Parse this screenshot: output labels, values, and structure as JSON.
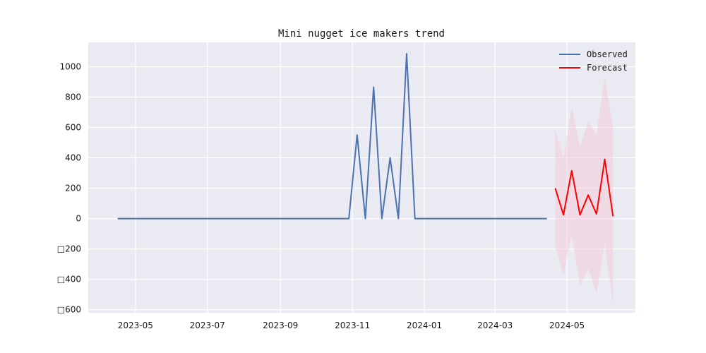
{
  "chart_data": {
    "type": "line",
    "title": "Mini nugget ice makers trend",
    "xlabel": "",
    "ylabel": "",
    "ylim": [
      -620,
      1160
    ],
    "xlim": [
      "2023-03-22",
      "2024-06-28"
    ],
    "grid": true,
    "legend_position": "top-right",
    "x_tick_labels": [
      "2023-05",
      "2023-07",
      "2023-09",
      "2023-11",
      "2024-01",
      "2024-03",
      "2024-05"
    ],
    "x_tick_dates": [
      "2023-05-01",
      "2023-07-01",
      "2023-09-01",
      "2023-11-01",
      "2024-01-01",
      "2024-03-01",
      "2024-05-01"
    ],
    "y_ticks": [
      -600,
      -400,
      -200,
      0,
      200,
      400,
      600,
      800,
      1000
    ],
    "y_tick_labels": [
      "□600",
      "□400",
      "□200",
      "0",
      "200",
      "400",
      "600",
      "800",
      "1000"
    ],
    "series": [
      {
        "name": "Observed",
        "color": "#4c72b0",
        "x": [
          "2023-04-16",
          "2023-04-23",
          "2023-04-30",
          "2023-05-07",
          "2023-05-14",
          "2023-05-21",
          "2023-05-28",
          "2023-06-04",
          "2023-06-11",
          "2023-06-18",
          "2023-06-25",
          "2023-07-02",
          "2023-07-09",
          "2023-07-16",
          "2023-07-23",
          "2023-07-30",
          "2023-08-06",
          "2023-08-13",
          "2023-08-20",
          "2023-08-27",
          "2023-09-03",
          "2023-09-10",
          "2023-09-17",
          "2023-09-24",
          "2023-10-01",
          "2023-10-08",
          "2023-10-15",
          "2023-10-22",
          "2023-10-29",
          "2023-11-05",
          "2023-11-12",
          "2023-11-19",
          "2023-11-26",
          "2023-12-03",
          "2023-12-10",
          "2023-12-17",
          "2023-12-24",
          "2023-12-31",
          "2024-01-07",
          "2024-01-14",
          "2024-01-21",
          "2024-01-28",
          "2024-02-04",
          "2024-02-11",
          "2024-02-18",
          "2024-02-25",
          "2024-03-03",
          "2024-03-10",
          "2024-03-17",
          "2024-03-24",
          "2024-03-31",
          "2024-04-07",
          "2024-04-14"
        ],
        "y": [
          0,
          0,
          0,
          0,
          0,
          0,
          0,
          0,
          0,
          0,
          0,
          0,
          0,
          0,
          0,
          0,
          0,
          0,
          0,
          0,
          0,
          0,
          0,
          0,
          0,
          0,
          0,
          0,
          0,
          550,
          0,
          865,
          0,
          400,
          0,
          1085,
          0,
          0,
          0,
          0,
          0,
          0,
          0,
          0,
          0,
          0,
          0,
          0,
          0,
          0,
          0,
          0,
          0
        ]
      },
      {
        "name": "Forecast",
        "color": "#ff0000",
        "x": [
          "2024-04-21",
          "2024-04-28",
          "2024-05-05",
          "2024-05-12",
          "2024-05-19",
          "2024-05-26",
          "2024-06-02",
          "2024-06-09"
        ],
        "y": [
          200,
          25,
          315,
          25,
          155,
          30,
          390,
          15
        ],
        "lower": [
          -185,
          -370,
          -105,
          -440,
          -330,
          -490,
          -170,
          -560
        ],
        "upper": [
          585,
          400,
          735,
          470,
          640,
          550,
          930,
          600
        ],
        "band_color": "#f4c6d4"
      }
    ]
  }
}
